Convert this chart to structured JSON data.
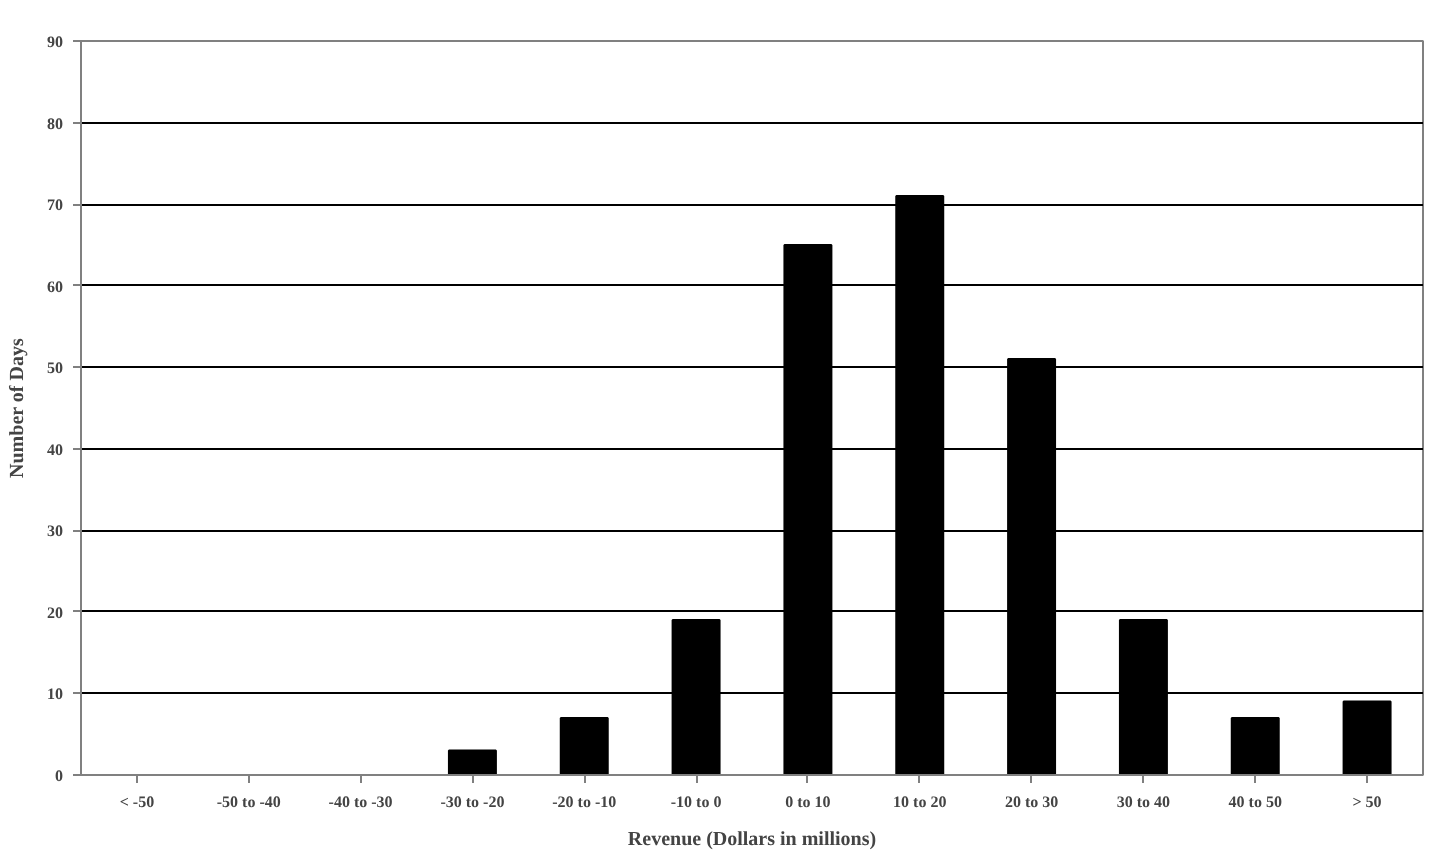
{
  "chart_data": {
    "type": "bar",
    "xlabel": "Revenue (Dollars in millions)",
    "ylabel": "Number of Days",
    "categories": [
      "< -50",
      "-50 to -40",
      "-40 to -30",
      "-30 to -20",
      "-20 to -10",
      "-10 to 0",
      "0 to 10",
      "10 to 20",
      "20 to 30",
      "30 to 40",
      "40 to 50",
      "> 50"
    ],
    "values": [
      0,
      0,
      0,
      3,
      7,
      19,
      65,
      71,
      51,
      19,
      7,
      9
    ],
    "color": "#000000",
    "ylim": [
      0,
      90
    ],
    "yticks": [
      0,
      10,
      20,
      30,
      40,
      50,
      60,
      70,
      80,
      90
    ],
    "grid": "y"
  }
}
